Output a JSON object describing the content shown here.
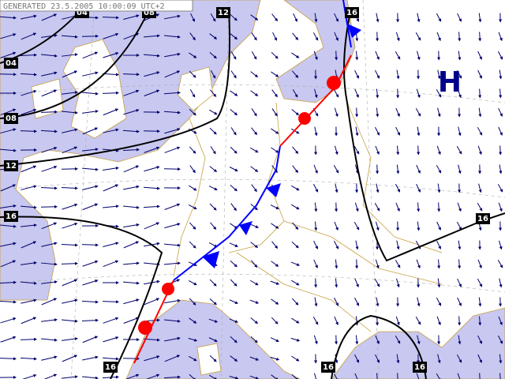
{
  "header": {
    "text": "GENERATED 23.5.2005 10:00:09 UTC+2"
  },
  "isobar_labels": [
    "04",
    "08",
    "12",
    "16",
    "04",
    "08",
    "12",
    "16",
    "16",
    "16",
    "16",
    "16"
  ],
  "pressure_center": "H"
}
